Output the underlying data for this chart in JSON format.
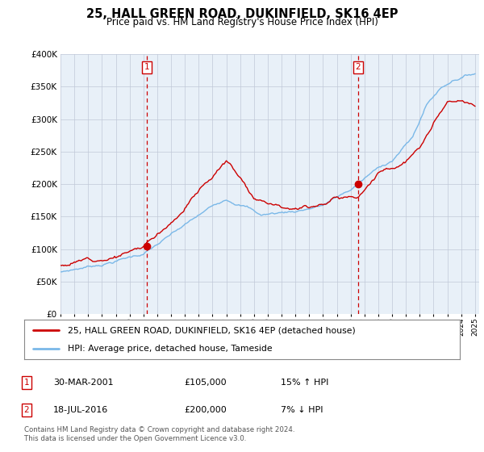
{
  "title": "25, HALL GREEN ROAD, DUKINFIELD, SK16 4EP",
  "subtitle": "Price paid vs. HM Land Registry's House Price Index (HPI)",
  "legend_line1": "25, HALL GREEN ROAD, DUKINFIELD, SK16 4EP (detached house)",
  "legend_line2": "HPI: Average price, detached house, Tameside",
  "annotation1_label": "1",
  "annotation1_date": "30-MAR-2001",
  "annotation1_price": "£105,000",
  "annotation1_hpi": "15% ↑ HPI",
  "annotation1_year": 2001.25,
  "annotation1_value": 105000,
  "annotation2_label": "2",
  "annotation2_date": "18-JUL-2016",
  "annotation2_price": "£200,000",
  "annotation2_hpi": "7% ↓ HPI",
  "annotation2_year": 2016.54,
  "annotation2_value": 200000,
  "ylim": [
    0,
    400000
  ],
  "yticks": [
    0,
    50000,
    100000,
    150000,
    200000,
    250000,
    300000,
    350000,
    400000
  ],
  "footer": "Contains HM Land Registry data © Crown copyright and database right 2024.\nThis data is licensed under the Open Government Licence v3.0.",
  "hpi_color": "#7ab8e8",
  "price_color": "#cc0000",
  "annotation_color": "#cc0000",
  "background_color": "#ffffff",
  "plot_bg_color": "#e8f0f8",
  "grid_color": "#c0c8d8"
}
